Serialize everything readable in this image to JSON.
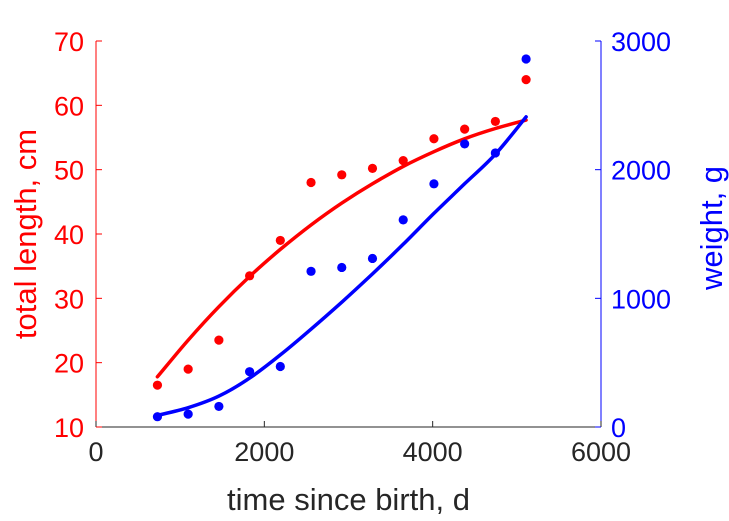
{
  "chart_data": {
    "type": "scatter",
    "xlabel": "time since birth, d",
    "ylabel_left": "total length, cm",
    "ylabel_right": "weight, g",
    "xlim": [
      0,
      6000
    ],
    "ylim_left": [
      10,
      70
    ],
    "ylim_right": [
      0,
      3000
    ],
    "xticks": [
      0,
      2000,
      4000,
      6000
    ],
    "yticks_left": [
      10,
      20,
      30,
      40,
      50,
      60,
      70
    ],
    "yticks_right": [
      0,
      1000,
      2000,
      3000
    ],
    "grid": false,
    "colors": {
      "length": "#ff0000",
      "weight": "#0000ff",
      "axis": "#262626",
      "text": "#262626"
    },
    "series": [
      {
        "axis": "left",
        "color": "#ff0000",
        "points": [
          [
            730,
            16.5
          ],
          [
            1095,
            19.0
          ],
          [
            1460,
            23.5
          ],
          [
            1825,
            33.5
          ],
          [
            2190,
            39.0
          ],
          [
            2555,
            48.0
          ],
          [
            2920,
            49.2
          ],
          [
            3285,
            50.2
          ],
          [
            3650,
            51.4
          ],
          [
            4015,
            54.8
          ],
          [
            4380,
            56.3
          ],
          [
            4745,
            57.5
          ],
          [
            5110,
            64.0
          ]
        ],
        "fit": [
          [
            730,
            17.8
          ],
          [
            1095,
            23.5
          ],
          [
            1460,
            28.7
          ],
          [
            1825,
            33.4
          ],
          [
            2190,
            37.6
          ],
          [
            2555,
            41.4
          ],
          [
            2920,
            44.8
          ],
          [
            3285,
            47.8
          ],
          [
            3650,
            50.5
          ],
          [
            4015,
            52.8
          ],
          [
            4380,
            54.8
          ],
          [
            4745,
            56.4
          ],
          [
            5110,
            57.7
          ]
        ]
      },
      {
        "axis": "right",
        "color": "#0000ff",
        "points": [
          [
            730,
            80
          ],
          [
            1095,
            100
          ],
          [
            1460,
            160
          ],
          [
            1825,
            430
          ],
          [
            2190,
            470
          ],
          [
            2555,
            1210
          ],
          [
            2920,
            1240
          ],
          [
            3285,
            1310
          ],
          [
            3650,
            1610
          ],
          [
            4015,
            1890
          ],
          [
            4380,
            2200
          ],
          [
            4745,
            2130
          ],
          [
            5110,
            2860
          ]
        ],
        "fit": [
          [
            730,
            90
          ],
          [
            1095,
            150
          ],
          [
            1460,
            240
          ],
          [
            1825,
            380
          ],
          [
            2190,
            560
          ],
          [
            2555,
            760
          ],
          [
            2920,
            970
          ],
          [
            3285,
            1190
          ],
          [
            3650,
            1420
          ],
          [
            4015,
            1660
          ],
          [
            4380,
            1890
          ],
          [
            4745,
            2120
          ],
          [
            5110,
            2410
          ]
        ]
      }
    ]
  }
}
